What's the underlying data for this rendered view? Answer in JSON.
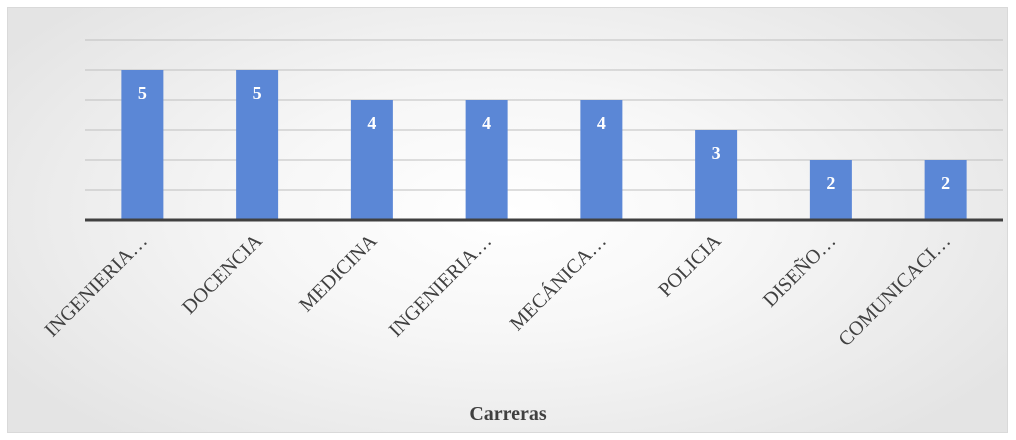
{
  "chart_data": {
    "type": "bar",
    "categories": [
      "INGENIERIA…",
      "DOCENCIA",
      "MEDICINA",
      "INGENIERIA…",
      "MECÁNICA…",
      "POLICIA",
      "DISEÑO…",
      "COMUNICACI…"
    ],
    "values": [
      5,
      5,
      4,
      4,
      4,
      3,
      2,
      2
    ],
    "xlabel": "Carreras",
    "ylabel": "",
    "ylim": [
      0,
      6
    ],
    "grid": true,
    "legend": "none",
    "data_labels": true,
    "bar_color": "#5b87d6",
    "axis_color": "#404040",
    "grid_color": "#bfbfbf"
  }
}
